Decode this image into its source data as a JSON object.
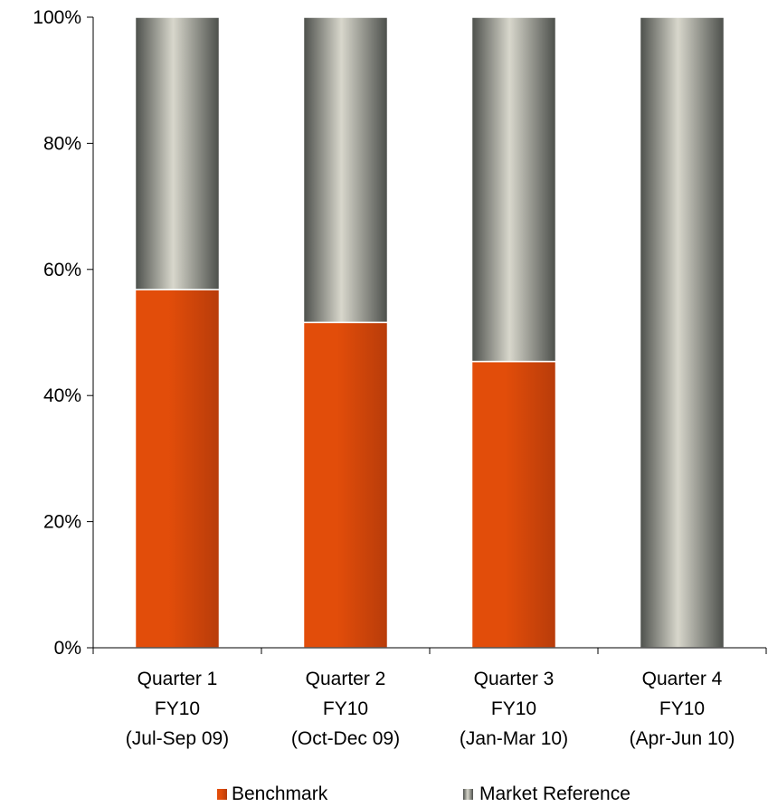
{
  "chart_data": {
    "type": "bar",
    "stacked": true,
    "categories": [
      [
        "Quarter 1",
        "FY10",
        "(Jul-Sep 09)"
      ],
      [
        "Quarter 2",
        "FY10",
        "(Oct-Dec 09)"
      ],
      [
        "Quarter 3",
        "FY10",
        "(Jan-Mar 10)"
      ],
      [
        "Quarter 4",
        "FY10",
        "(Apr-Jun 10)"
      ]
    ],
    "series": [
      {
        "name": "Benchmark",
        "values": [
          56.8,
          51.6,
          45.4,
          0
        ],
        "color": "#e24d0a",
        "shade": "#b83c0a"
      },
      {
        "name": "Market Reference",
        "values": [
          43.2,
          48.4,
          54.6,
          100
        ],
        "color": "#d8d7cc",
        "shade": "#4c4f4b"
      }
    ],
    "ylim": [
      0,
      100
    ],
    "yticks": [
      0,
      20,
      40,
      60,
      80,
      100
    ],
    "ytick_labels": [
      "0%",
      "20%",
      "40%",
      "60%",
      "80%",
      "100%"
    ],
    "grid": false,
    "legend_position": "bottom",
    "title": "",
    "xlabel": "",
    "ylabel": ""
  }
}
